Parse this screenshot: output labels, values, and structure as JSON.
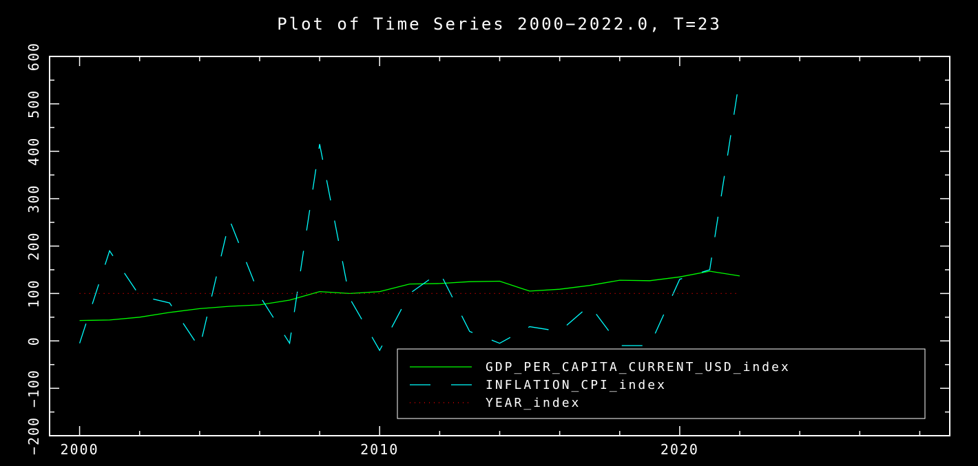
{
  "chart_data": {
    "type": "line",
    "title": "Plot of Time Series 2000−2022.0, T=23",
    "xlabel": "",
    "ylabel": "",
    "xlim": [
      1999,
      2029
    ],
    "ylim": [
      -200,
      600
    ],
    "x_ticks": [
      2000,
      2010,
      2020
    ],
    "x_tick_labels": [
      "2000",
      "2010",
      "2020"
    ],
    "y_ticks": [
      -200,
      -100,
      0,
      100,
      200,
      300,
      400,
      500,
      600
    ],
    "y_tick_labels": [
      "−200",
      "−100",
      "0",
      "100",
      "200",
      "300",
      "400",
      "500",
      "600"
    ],
    "legend_position": "bottom-right",
    "x": [
      2000,
      2001,
      2002,
      2003,
      2004,
      2005,
      2006,
      2007,
      2008,
      2009,
      2010,
      2011,
      2012,
      2013,
      2014,
      2015,
      2016,
      2017,
      2018,
      2019,
      2020,
      2021,
      2022
    ],
    "series": [
      {
        "name": "GDP_PER_CAPITA_CURRENT_USD_index",
        "color": "#00ff00",
        "dash": "solid",
        "values": [
          43,
          44,
          50,
          60,
          68,
          73,
          76,
          86,
          104,
          100,
          104,
          120,
          121,
          125,
          126,
          105,
          109,
          117,
          128,
          127,
          135,
          147,
          137
        ]
      },
      {
        "name": "INFLATION_CPI_index",
        "color": "#00ffff",
        "dash": "dashed",
        "values": [
          -5,
          190,
          95,
          80,
          -15,
          255,
          95,
          -5,
          415,
          90,
          -20,
          100,
          145,
          20,
          -5,
          30,
          20,
          75,
          -10,
          -10,
          130,
          150,
          555
        ]
      },
      {
        "name": "YEAR_index",
        "color": "#ff0000",
        "dash": "dotted",
        "values": [
          100,
          100,
          100,
          100,
          100,
          100,
          100,
          100,
          100,
          100,
          100,
          100,
          100,
          100,
          100,
          100,
          100,
          100,
          100,
          100,
          100,
          100,
          100
        ]
      }
    ]
  }
}
